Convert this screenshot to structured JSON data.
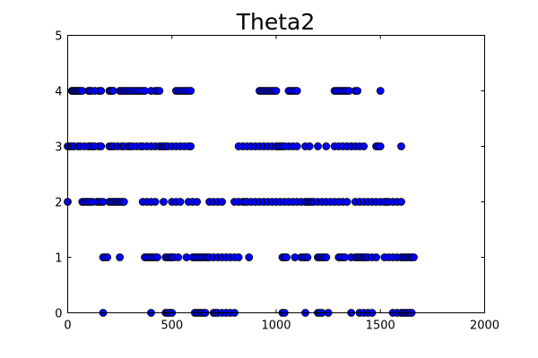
{
  "chart_data": {
    "type": "scatter",
    "title": "Theta2",
    "xlabel": "",
    "ylabel": "",
    "xlim": [
      0,
      2000
    ],
    "ylim": [
      0,
      5
    ],
    "x_ticks": [
      0,
      500,
      1000,
      1500,
      2000
    ],
    "y_ticks": [
      0,
      1,
      2,
      3,
      4,
      5
    ],
    "grid": false,
    "marker_color": "#0000ff",
    "marker_edge_color": "#000000",
    "series": [
      {
        "y": 4,
        "x": [
          20,
          26,
          32,
          40,
          46,
          52,
          60,
          70,
          100,
          106,
          112,
          130,
          150,
          160,
          200,
          206,
          212,
          218,
          250,
          260,
          270,
          280,
          290,
          300,
          310,
          320,
          330,
          340,
          350,
          360,
          370,
          400,
          420,
          430,
          440,
          520,
          530,
          540,
          550,
          560,
          570,
          580,
          590,
          920,
          930,
          940,
          950,
          960,
          970,
          980,
          990,
          1000,
          1060,
          1070,
          1080,
          1090,
          1100,
          1280,
          1290,
          1300,
          1310,
          1320,
          1330,
          1340,
          1350,
          1380,
          1390,
          1500
        ]
      },
      {
        "y": 3,
        "x": [
          0,
          10,
          20,
          30,
          50,
          60,
          80,
          100,
          110,
          120,
          130,
          150,
          160,
          200,
          210,
          220,
          240,
          260,
          270,
          290,
          300,
          310,
          330,
          350,
          360,
          380,
          400,
          420,
          440,
          450,
          460,
          470,
          480,
          500,
          520,
          540,
          560,
          580,
          590,
          820,
          840,
          860,
          880,
          900,
          920,
          940,
          960,
          980,
          1000,
          1010,
          1020,
          1030,
          1040,
          1060,
          1080,
          1100,
          1140,
          1160,
          1200,
          1240,
          1280,
          1300,
          1320,
          1340,
          1360,
          1380,
          1400,
          1420,
          1480,
          1490,
          1500,
          1600
        ]
      },
      {
        "y": 2,
        "x": [
          0,
          70,
          80,
          90,
          100,
          110,
          120,
          140,
          150,
          160,
          170,
          200,
          210,
          220,
          230,
          240,
          250,
          260,
          270,
          360,
          380,
          400,
          420,
          460,
          500,
          520,
          540,
          580,
          600,
          620,
          680,
          700,
          720,
          740,
          800,
          820,
          840,
          850,
          860,
          880,
          900,
          920,
          940,
          960,
          980,
          1000,
          1020,
          1040,
          1060,
          1080,
          1100,
          1120,
          1140,
          1150,
          1160,
          1170,
          1180,
          1200,
          1220,
          1240,
          1260,
          1280,
          1300,
          1320,
          1340,
          1380,
          1400,
          1420,
          1440,
          1460,
          1480,
          1500,
          1520,
          1530,
          1540,
          1560,
          1580,
          1600
        ]
      },
      {
        "y": 1,
        "x": [
          170,
          180,
          190,
          250,
          370,
          380,
          390,
          400,
          410,
          420,
          430,
          470,
          480,
          490,
          500,
          510,
          530,
          570,
          600,
          610,
          620,
          630,
          640,
          650,
          660,
          670,
          680,
          700,
          720,
          740,
          760,
          780,
          800,
          820,
          870,
          1030,
          1040,
          1050,
          1090,
          1120,
          1130,
          1140,
          1150,
          1200,
          1210,
          1220,
          1230,
          1240,
          1300,
          1310,
          1320,
          1330,
          1360,
          1380,
          1390,
          1400,
          1410,
          1420,
          1430,
          1440,
          1460,
          1480,
          1520,
          1540,
          1560,
          1580,
          1600,
          1610,
          1620,
          1630,
          1640,
          1650,
          1660
        ]
      },
      {
        "y": 0,
        "x": [
          170,
          400,
          470,
          480,
          490,
          500,
          610,
          620,
          630,
          640,
          650,
          660,
          700,
          710,
          720,
          740,
          760,
          780,
          800,
          1030,
          1040,
          1140,
          1200,
          1210,
          1220,
          1250,
          1360,
          1400,
          1420,
          1440,
          1460,
          1560,
          1580,
          1600,
          1610,
          1620,
          1630,
          1640,
          1650
        ]
      }
    ]
  }
}
